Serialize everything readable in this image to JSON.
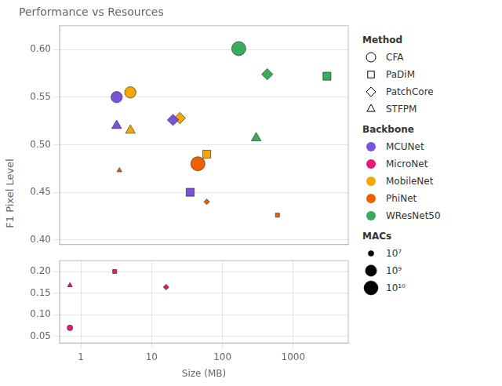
{
  "chart_data": [
    {
      "type": "scatter",
      "title": "Performance vs Resources",
      "ylabel": "F1 Pixel Level",
      "log": "x",
      "grid": true,
      "tick_labels": "y",
      "xlim": [
        0.5,
        6000
      ],
      "xticks": [],
      "ylim": [
        0.395,
        0.625
      ],
      "yticks": [
        {
          "value": 0.4,
          "label": "0.40"
        },
        0.45,
        {
          "value": 0.5,
          "label": "0.50"
        },
        0.55,
        {
          "value": 0.6,
          "label": "0.60"
        }
      ],
      "points": [
        {
          "x": 3.2,
          "y": 0.55,
          "backbone": "MCUNet",
          "method": "CFA",
          "macs": 1000000000
        },
        {
          "x": 3.2,
          "y": 0.52,
          "backbone": "MCUNet",
          "method": "STFPM",
          "macs": 1000000000
        },
        {
          "x": 5.0,
          "y": 0.555,
          "backbone": "MobileNet",
          "method": "CFA",
          "macs": 1000000000
        },
        {
          "x": 5.0,
          "y": 0.515,
          "backbone": "MobileNet",
          "method": "STFPM",
          "macs": 1000000000
        },
        {
          "x": 3.5,
          "y": 0.473,
          "backbone": "PhiNet",
          "method": "STFPM",
          "macs": 10000000
        },
        {
          "x": 20.0,
          "y": 0.526,
          "backbone": "MCUNet",
          "method": "PatchCore",
          "macs": 1000000000
        },
        {
          "x": 25.0,
          "y": 0.528,
          "backbone": "MobileNet",
          "method": "PatchCore",
          "macs": 1000000000
        },
        {
          "x": 45.0,
          "y": 0.48,
          "backbone": "PhiNet",
          "method": "CFA",
          "macs": 10000000000
        },
        {
          "x": 35.0,
          "y": 0.45,
          "backbone": "MCUNet",
          "method": "PaDiM",
          "macs": 1000000000
        },
        {
          "x": 60.0,
          "y": 0.49,
          "backbone": "MobileNet",
          "method": "PaDiM",
          "macs": 1000000000
        },
        {
          "x": 60.0,
          "y": 0.44,
          "backbone": "PhiNet",
          "method": "PatchCore",
          "macs": 10000000
        },
        {
          "x": 170.0,
          "y": 0.601,
          "backbone": "WResNet50",
          "method": "CFA",
          "macs": 10000000000
        },
        {
          "x": 430.0,
          "y": 0.574,
          "backbone": "WResNet50",
          "method": "PatchCore",
          "macs": 1000000000
        },
        {
          "x": 300.0,
          "y": 0.507,
          "backbone": "WResNet50",
          "method": "STFPM",
          "macs": 1000000000
        },
        {
          "x": 600.0,
          "y": 0.426,
          "backbone": "PhiNet",
          "method": "PaDiM",
          "macs": 10000000
        },
        {
          "x": 3000.0,
          "y": 0.572,
          "backbone": "WResNet50",
          "method": "PaDiM",
          "macs": 1000000000
        }
      ]
    },
    {
      "type": "scatter",
      "xlabel": "Size (MB)",
      "log": "x",
      "grid": true,
      "xlim": [
        0.5,
        6000
      ],
      "xticks": [
        1,
        10,
        100,
        1000
      ],
      "ylim": [
        0.035,
        0.225
      ],
      "yticks": [
        0.05,
        {
          "value": 0.1,
          "label": "0.10"
        },
        0.15,
        {
          "value": 0.2,
          "label": "0.20"
        }
      ],
      "points": [
        {
          "x": 0.7,
          "y": 0.168,
          "backbone": "MicroNet",
          "method": "STFPM",
          "macs": 10000000
        },
        {
          "x": 3.0,
          "y": 0.2,
          "backbone": "MicroNet",
          "method": "PaDiM",
          "macs": 10000000
        },
        {
          "x": 16.0,
          "y": 0.164,
          "backbone": "MicroNet",
          "method": "PatchCore",
          "macs": 10000000
        },
        {
          "x": 0.7,
          "y": 0.07,
          "backbone": "MicroNet",
          "method": "CFA",
          "macs": 10000000
        }
      ]
    }
  ],
  "legend_sections": [
    {
      "title": "Method",
      "entries": [
        {
          "name": "CFA",
          "marker": "circle"
        },
        {
          "name": "PaDiM",
          "marker": "square"
        },
        {
          "name": "PatchCore",
          "marker": "diamond"
        },
        {
          "name": "STFPM",
          "marker": "triangle"
        }
      ]
    },
    {
      "title": "Backbone",
      "entries": [
        {
          "name": "MCUNet",
          "color": "#7B52D8"
        },
        {
          "name": "MicroNet",
          "color": "#E8177A"
        },
        {
          "name": "MobileNet",
          "color": "#F5A800"
        },
        {
          "name": "PhiNet",
          "color": "#F06000"
        },
        {
          "name": "WResNet50",
          "color": "#3AAA5C"
        }
      ]
    },
    {
      "title": "MACs",
      "entries": [
        {
          "value": 10000000,
          "label": "10⁷"
        },
        {
          "value": 1000000000,
          "label": "10⁹"
        },
        {
          "value": 10000000000,
          "label": "10¹⁰"
        }
      ]
    }
  ]
}
